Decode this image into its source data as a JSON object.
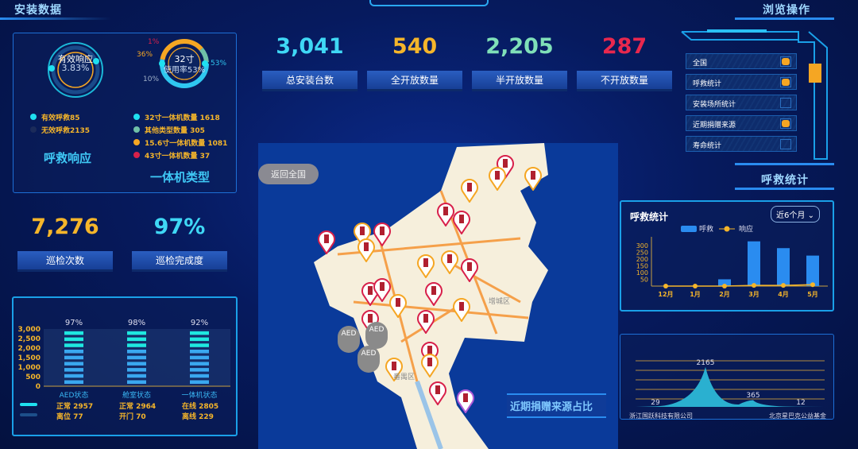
{
  "header": {
    "left_title": "安装数据",
    "right_title": "浏览操作"
  },
  "response": {
    "ring_title": "有效响应",
    "ring_value": "3.83%",
    "legend": [
      {
        "label": "有效呼救85",
        "color": "#1fe0f0"
      },
      {
        "label": "无效呼救2135",
        "color": "#1b2b5a"
      }
    ],
    "title": "呼救响应"
  },
  "machine_type": {
    "ring_title": "32寸",
    "ring_sub": "使用率53%",
    "slices": [
      {
        "label": "1%",
        "color": "#d8204a"
      },
      {
        "label": "36%",
        "color": "#f5a623"
      },
      {
        "label": "53%",
        "color": "#2fc7f0"
      },
      {
        "label": "10%",
        "color": "#9fb0c8"
      }
    ],
    "legend": [
      {
        "label": "32寸一体机数量 1618",
        "color": "#1fe0f0"
      },
      {
        "label": "其他类型数量 305",
        "color": "#6fc0a8"
      },
      {
        "label": "15.6寸一体机数量 1081",
        "color": "#f5a623"
      },
      {
        "label": "43寸一体机数量 37",
        "color": "#d8204a"
      }
    ],
    "title": "一体机类型"
  },
  "stats": [
    {
      "value": "3,041",
      "label": "总安装台数",
      "color": "#3fd8f5"
    },
    {
      "value": "540",
      "label": "全开放数量",
      "color": "#f5b52a"
    },
    {
      "value": "2,205",
      "label": "半开放数量",
      "color": "#7fe0b8"
    },
    {
      "value": "287",
      "label": "不开放数量",
      "color": "#e8284e"
    }
  ],
  "inspection": [
    {
      "value": "7,276",
      "label": "巡检次数",
      "color": "#f5b52a"
    },
    {
      "value": "97%",
      "label": "巡检完成度",
      "color": "#3fd8f5"
    }
  ],
  "map": {
    "back_button": "返回全国",
    "districts": [
      "增城区",
      "番禺区"
    ],
    "section_title": "近期捐赠来源占比",
    "aed_label": "AED"
  },
  "operations": {
    "items": [
      {
        "label": "全国",
        "checked": true
      },
      {
        "label": "呼救统计",
        "checked": true
      },
      {
        "label": "安装场所统计",
        "checked": false
      },
      {
        "label": "近期捐赠来源",
        "checked": true
      },
      {
        "label": "寿命统计",
        "checked": false
      }
    ],
    "section_title": "呼救统计"
  },
  "chart_data": [
    {
      "type": "bar",
      "categories": [
        "AED状态",
        "舱室状态",
        "一体机状态"
      ],
      "values": [
        2957,
        2964,
        2805
      ],
      "data_labels": [
        "97%",
        "98%",
        "92%"
      ],
      "yticks": [
        "0",
        "500",
        "1,000",
        "1,500",
        "2,000",
        "2,500",
        "3,000"
      ],
      "ylim": [
        0,
        3000
      ],
      "legend": [
        [
          "正常 2957",
          "正常 2964",
          "在线 2805"
        ],
        [
          "离位 77",
          "开门 70",
          "离线 229"
        ]
      ]
    },
    {
      "type": "bar",
      "title": "呼救统计",
      "period": "近6个月",
      "categories": [
        "12月",
        "1月",
        "2月",
        "3月",
        "4月",
        "5月"
      ],
      "series": [
        {
          "name": "呼救",
          "type": "bar",
          "values": [
            0,
            0,
            50,
            330,
            280,
            225
          ]
        },
        {
          "name": "响应",
          "type": "line",
          "values": [
            0,
            0,
            0,
            5,
            5,
            10
          ]
        }
      ],
      "yticks": [
        "50",
        "100",
        "150",
        "200",
        "250",
        "300"
      ],
      "ylim": [
        0,
        340
      ]
    },
    {
      "type": "area",
      "values": [
        29,
        2165,
        365,
        12
      ],
      "data_labels": [
        "29",
        "2165",
        "365",
        "12"
      ],
      "xlabels": [
        "浙江国跃科技有限公司",
        "北京星巴克公益基金"
      ],
      "ylim": [
        0,
        2500
      ]
    }
  ]
}
